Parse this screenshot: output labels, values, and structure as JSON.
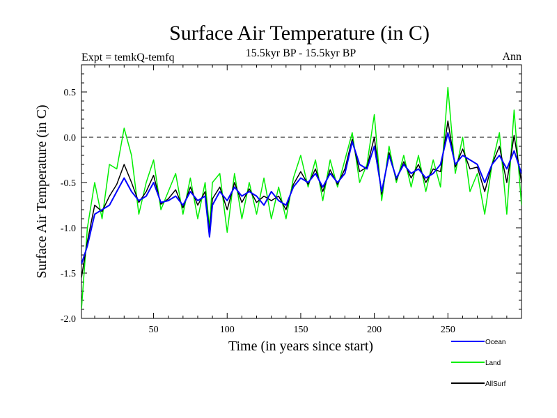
{
  "chart_data": {
    "type": "line",
    "title": "Surface Air Temperature (in C)",
    "subtitle": "15.5kyr BP - 15.5kyr BP",
    "left_label": "Expt = temkQ-temfq",
    "right_label": "Ann",
    "xlabel": "Time (in years since start)",
    "ylabel": "Surface Air Temperature (in C)",
    "xlim": [
      1,
      300
    ],
    "ylim": [
      -2.0,
      0.8
    ],
    "x_ticks": [
      50,
      100,
      150,
      200,
      250
    ],
    "x_tick_labels": [
      "50",
      "100",
      "150",
      "200",
      "250"
    ],
    "y_ticks": [
      -2.0,
      -1.5,
      -1.0,
      -0.5,
      0.0,
      0.5
    ],
    "y_tick_labels": [
      "-2.0",
      "-1.5",
      "-1.0",
      "-0.5",
      "0.0",
      "0.5"
    ],
    "reference_line": 0.0,
    "legend_position": "bottom-right",
    "series": [
      {
        "name": "Ocean",
        "color": "#0000ff",
        "x": [
          1,
          5,
          10,
          15,
          20,
          25,
          30,
          35,
          40,
          45,
          50,
          55,
          60,
          65,
          70,
          75,
          80,
          85,
          88,
          90,
          95,
          100,
          105,
          110,
          115,
          120,
          125,
          130,
          135,
          140,
          145,
          150,
          155,
          160,
          165,
          170,
          175,
          180,
          185,
          190,
          195,
          200,
          205,
          210,
          215,
          220,
          225,
          230,
          235,
          240,
          245,
          250,
          255,
          260,
          265,
          270,
          275,
          280,
          285,
          290,
          295,
          300
        ],
        "values": [
          -1.4,
          -1.2,
          -0.85,
          -0.8,
          -0.75,
          -0.6,
          -0.45,
          -0.6,
          -0.7,
          -0.65,
          -0.5,
          -0.72,
          -0.7,
          -0.65,
          -0.75,
          -0.6,
          -0.7,
          -0.65,
          -1.1,
          -0.75,
          -0.6,
          -0.7,
          -0.55,
          -0.65,
          -0.6,
          -0.65,
          -0.75,
          -0.6,
          -0.7,
          -0.75,
          -0.55,
          -0.45,
          -0.5,
          -0.4,
          -0.55,
          -0.4,
          -0.5,
          -0.4,
          -0.05,
          -0.3,
          -0.35,
          -0.1,
          -0.6,
          -0.2,
          -0.45,
          -0.3,
          -0.4,
          -0.35,
          -0.45,
          -0.4,
          -0.3,
          0.05,
          -0.3,
          -0.2,
          -0.25,
          -0.3,
          -0.5,
          -0.3,
          -0.2,
          -0.35,
          -0.15,
          -0.4
        ]
      },
      {
        "name": "Land",
        "color": "#00ee00",
        "x": [
          1,
          5,
          10,
          15,
          20,
          25,
          30,
          35,
          40,
          45,
          50,
          55,
          60,
          65,
          70,
          75,
          80,
          85,
          88,
          90,
          95,
          100,
          105,
          110,
          115,
          120,
          125,
          130,
          135,
          140,
          145,
          150,
          155,
          160,
          165,
          170,
          175,
          180,
          185,
          190,
          195,
          200,
          205,
          210,
          215,
          220,
          225,
          230,
          235,
          240,
          245,
          250,
          255,
          260,
          265,
          270,
          275,
          280,
          285,
          290,
          295,
          300
        ],
        "values": [
          -1.9,
          -1.0,
          -0.5,
          -0.9,
          -0.3,
          -0.35,
          0.1,
          -0.2,
          -0.85,
          -0.5,
          -0.25,
          -0.8,
          -0.6,
          -0.4,
          -0.85,
          -0.45,
          -0.9,
          -0.5,
          -1.0,
          -0.5,
          -0.4,
          -1.05,
          -0.4,
          -0.9,
          -0.5,
          -0.85,
          -0.45,
          -0.9,
          -0.55,
          -0.9,
          -0.45,
          -0.2,
          -0.55,
          -0.25,
          -0.7,
          -0.25,
          -0.55,
          -0.25,
          0.05,
          -0.5,
          -0.3,
          0.25,
          -0.7,
          -0.1,
          -0.5,
          -0.2,
          -0.55,
          -0.2,
          -0.6,
          -0.25,
          -0.55,
          0.55,
          -0.4,
          0.0,
          -0.6,
          -0.4,
          -0.85,
          -0.3,
          0.05,
          -0.85,
          0.3,
          -0.75
        ]
      },
      {
        "name": "AllSurf",
        "color": "#000000",
        "x": [
          1,
          5,
          10,
          15,
          20,
          25,
          30,
          35,
          40,
          45,
          50,
          55,
          60,
          65,
          70,
          75,
          80,
          85,
          88,
          90,
          95,
          100,
          105,
          110,
          115,
          120,
          125,
          130,
          135,
          140,
          145,
          150,
          155,
          160,
          165,
          170,
          175,
          180,
          185,
          190,
          195,
          200,
          205,
          210,
          215,
          220,
          225,
          230,
          235,
          240,
          245,
          250,
          255,
          260,
          265,
          270,
          275,
          280,
          285,
          290,
          295,
          300
        ],
        "values": [
          -1.55,
          -1.15,
          -0.75,
          -0.82,
          -0.65,
          -0.52,
          -0.3,
          -0.5,
          -0.72,
          -0.6,
          -0.42,
          -0.74,
          -0.68,
          -0.58,
          -0.78,
          -0.55,
          -0.75,
          -0.6,
          -1.05,
          -0.68,
          -0.55,
          -0.8,
          -0.5,
          -0.72,
          -0.57,
          -0.72,
          -0.65,
          -0.7,
          -0.65,
          -0.8,
          -0.52,
          -0.38,
          -0.52,
          -0.35,
          -0.6,
          -0.36,
          -0.52,
          -0.35,
          -0.02,
          -0.38,
          -0.33,
          0.0,
          -0.63,
          -0.17,
          -0.47,
          -0.27,
          -0.45,
          -0.3,
          -0.5,
          -0.35,
          -0.38,
          0.18,
          -0.33,
          -0.13,
          -0.35,
          -0.33,
          -0.6,
          -0.3,
          -0.1,
          -0.5,
          0.02,
          -0.5
        ]
      }
    ]
  }
}
